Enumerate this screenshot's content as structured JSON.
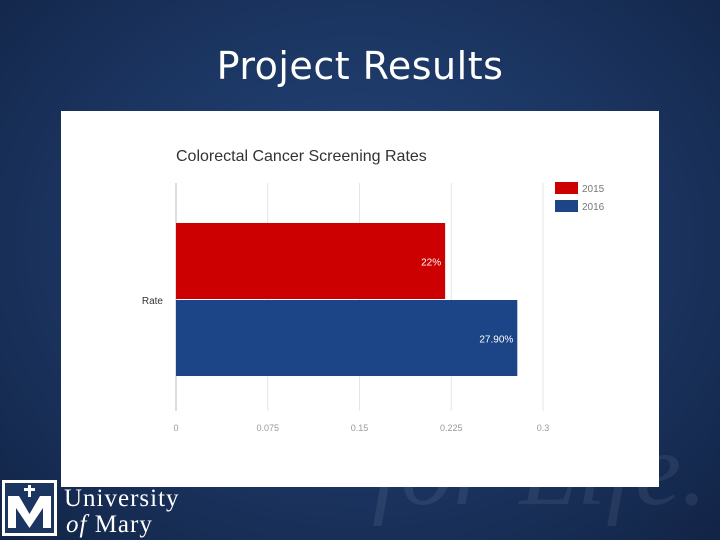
{
  "slide": {
    "title": "Project Results",
    "watermark": "for Life."
  },
  "logo": {
    "line1": "University",
    "line2_of": "of",
    "line2_name": "Mary"
  },
  "colors": {
    "background": "#1b3561",
    "series_2015": "#cc0000",
    "series_2016": "#1c4587"
  },
  "chart_data": {
    "type": "bar",
    "orientation": "horizontal",
    "title": "Colorectal Cancer Screening Rates",
    "categories": [
      "Rate"
    ],
    "series": [
      {
        "name": "2015",
        "values": [
          0.22
        ],
        "label": "22%",
        "color": "#cc0000"
      },
      {
        "name": "2016",
        "values": [
          0.279
        ],
        "label": "27.90%",
        "color": "#1c4587"
      }
    ],
    "xlim": [
      0,
      0.3
    ],
    "xticks": [
      "0",
      "0.075",
      "0.15",
      "0.225",
      "0.3"
    ],
    "grid": true,
    "legend_position": "top-right"
  }
}
